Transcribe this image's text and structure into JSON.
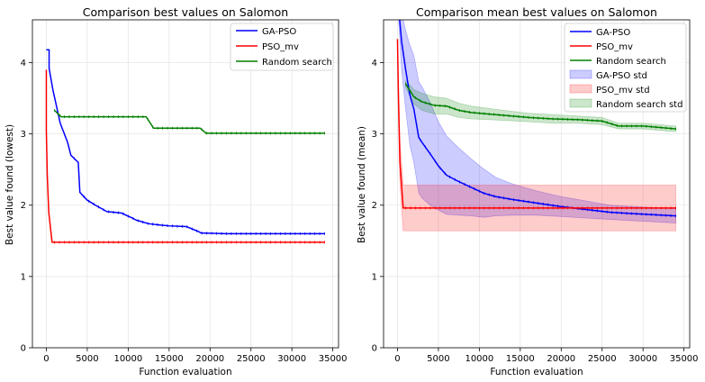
{
  "chart_data": [
    {
      "type": "line",
      "title": "Comparison best values on Salomon",
      "xlabel": "Function evaluation",
      "ylabel": "Best value found (lowest)",
      "xlim": [
        -1700,
        35700
      ],
      "ylim": [
        0,
        4.6
      ],
      "xticks": [
        0,
        5000,
        10000,
        15000,
        20000,
        25000,
        30000,
        35000
      ],
      "yticks": [
        0,
        1,
        2,
        3,
        4
      ],
      "grid": true,
      "legend": "top-right",
      "series": [
        {
          "name": "GA-PSO",
          "color": "#0000ff",
          "x": [
            0,
            340,
            340,
            800,
            1700,
            2600,
            3000,
            3900,
            4100,
            5000,
            6000,
            7400,
            9200,
            9900,
            10500,
            11000,
            12500,
            14000,
            15000,
            17100,
            18600,
            18900,
            22000,
            26000,
            30000,
            34000
          ],
          "y": [
            4.18,
            4.18,
            3.92,
            3.62,
            3.15,
            2.88,
            2.7,
            2.6,
            2.18,
            2.07,
            2.0,
            1.91,
            1.89,
            1.85,
            1.82,
            1.79,
            1.74,
            1.72,
            1.71,
            1.7,
            1.63,
            1.61,
            1.6,
            1.6,
            1.6,
            1.6
          ]
        },
        {
          "name": "PSO_mv",
          "color": "#ff0000",
          "x": [
            0,
            0,
            120,
            300,
            700,
            5000,
            10000,
            20000,
            34000
          ],
          "y": [
            3.9,
            3.05,
            2.4,
            1.9,
            1.48,
            1.48,
            1.48,
            1.48,
            1.48
          ],
          "error_std": null
        },
        {
          "name": "Random search",
          "color": "#008000",
          "x": [
            1000,
            1800,
            2600,
            5000,
            10000,
            12200,
            13100,
            15000,
            18000,
            18800,
            19500,
            22000,
            26000,
            30000,
            34000
          ],
          "y": [
            3.33,
            3.24,
            3.24,
            3.24,
            3.24,
            3.24,
            3.08,
            3.08,
            3.08,
            3.08,
            3.01,
            3.01,
            3.01,
            3.01,
            3.01
          ]
        }
      ]
    },
    {
      "type": "line",
      "title": "Comparison mean best values on Salomon",
      "xlabel": "Function evaluation",
      "ylabel": "Best value found (mean)",
      "xlim": [
        -1700,
        35700
      ],
      "ylim": [
        0,
        4.6
      ],
      "xticks": [
        0,
        5000,
        10000,
        15000,
        20000,
        25000,
        30000,
        35000
      ],
      "yticks": [
        0,
        1,
        2,
        3,
        4
      ],
      "grid": true,
      "legend": "top-right",
      "series": [
        {
          "name": "GA-PSO",
          "color": "#0000ff",
          "x": [
            0,
            500,
            1000,
            1500,
            2000,
            2600,
            3000,
            4000,
            5000,
            6000,
            7500,
            9000,
            10500,
            12000,
            14000,
            17000,
            20000,
            23000,
            26000,
            29000,
            34000
          ],
          "y": [
            4.95,
            4.3,
            3.9,
            3.55,
            3.35,
            2.95,
            2.88,
            2.72,
            2.55,
            2.42,
            2.33,
            2.25,
            2.17,
            2.12,
            2.08,
            2.03,
            1.98,
            1.94,
            1.9,
            1.88,
            1.85
          ],
          "std": [
            0.05,
            0.4,
            0.55,
            0.7,
            0.75,
            0.78,
            0.78,
            0.72,
            0.62,
            0.55,
            0.47,
            0.4,
            0.34,
            0.27,
            0.22,
            0.17,
            0.14,
            0.12,
            0.1,
            0.1,
            0.1
          ]
        },
        {
          "name": "PSO_mv",
          "color": "#ff0000",
          "x": [
            0,
            120,
            300,
            700,
            5000,
            10000,
            20000,
            34000
          ],
          "y": [
            4.33,
            3.5,
            2.6,
            1.96,
            1.96,
            1.96,
            1.96,
            1.96
          ],
          "std": [
            0.0,
            0.2,
            0.3,
            0.32,
            0.32,
            0.32,
            0.32,
            0.32
          ]
        },
        {
          "name": "Random search",
          "color": "#008000",
          "x": [
            1000,
            2000,
            3000,
            4500,
            6000,
            7500,
            9000,
            11000,
            13000,
            16000,
            19000,
            22000,
            25000,
            27000,
            30000,
            33000,
            34000
          ],
          "y": [
            3.7,
            3.52,
            3.45,
            3.4,
            3.39,
            3.33,
            3.3,
            3.28,
            3.26,
            3.23,
            3.21,
            3.2,
            3.18,
            3.11,
            3.11,
            3.08,
            3.07
          ],
          "std": [
            0.05,
            0.1,
            0.12,
            0.12,
            0.11,
            0.1,
            0.09,
            0.08,
            0.07,
            0.06,
            0.06,
            0.05,
            0.05,
            0.04,
            0.04,
            0.04,
            0.04
          ]
        }
      ],
      "band_legend": [
        "GA-PSO std",
        "PSO_mv std",
        "Random search std"
      ]
    }
  ]
}
